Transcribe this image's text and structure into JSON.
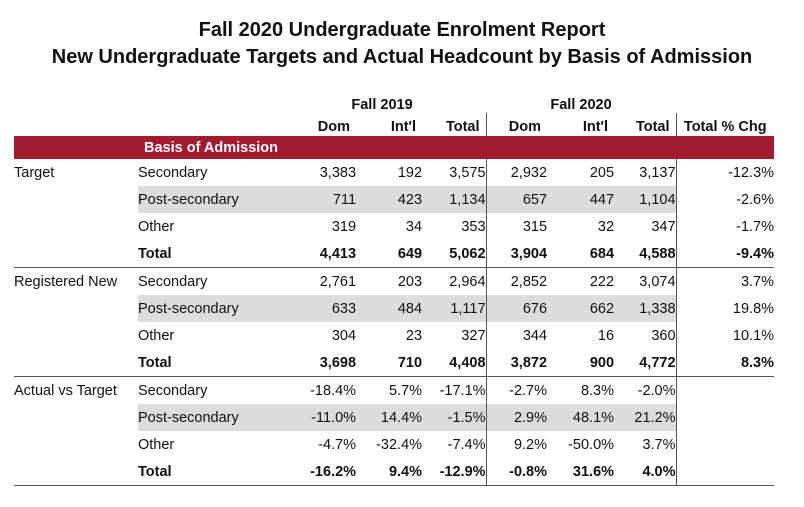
{
  "report": {
    "title": "Fall 2020 Undergraduate Enrolment Report",
    "subtitle": "New Undergraduate Targets and Actual Headcount by Basis of Admission"
  },
  "table": {
    "year_2019": "Fall 2019",
    "year_2020": "Fall 2020",
    "columns": [
      "Dom",
      "Int'l",
      "Total",
      "Dom",
      "Int'l",
      "Total",
      "Total % Chg"
    ],
    "basis_header": "Basis of Admission",
    "sections": [
      {
        "label": "Target",
        "rows": [
          {
            "basis": "Secondary",
            "vals": [
              "3,383",
              "192",
              "3,575",
              "2,932",
              "205",
              "3,137"
            ],
            "pct": "-12.3%"
          },
          {
            "basis": "Post-secondary",
            "vals": [
              "711",
              "423",
              "1,134",
              "657",
              "447",
              "1,104"
            ],
            "pct": "-2.6%"
          },
          {
            "basis": "Other",
            "vals": [
              "319",
              "34",
              "353",
              "315",
              "32",
              "347"
            ],
            "pct": "-1.7%"
          },
          {
            "basis": "Total",
            "vals": [
              "4,413",
              "649",
              "5,062",
              "3,904",
              "684",
              "4,588"
            ],
            "pct": "-9.4%"
          }
        ]
      },
      {
        "label": "Registered New",
        "rows": [
          {
            "basis": "Secondary",
            "vals": [
              "2,761",
              "203",
              "2,964",
              "2,852",
              "222",
              "3,074"
            ],
            "pct": "3.7%"
          },
          {
            "basis": "Post-secondary",
            "vals": [
              "633",
              "484",
              "1,117",
              "676",
              "662",
              "1,338"
            ],
            "pct": "19.8%"
          },
          {
            "basis": "Other",
            "vals": [
              "304",
              "23",
              "327",
              "344",
              "16",
              "360"
            ],
            "pct": "10.1%"
          },
          {
            "basis": "Total",
            "vals": [
              "3,698",
              "710",
              "4,408",
              "3,872",
              "900",
              "4,772"
            ],
            "pct": "8.3%"
          }
        ]
      },
      {
        "label": "Actual vs Target",
        "rows": [
          {
            "basis": "Secondary",
            "vals": [
              "-18.4%",
              "5.7%",
              "-17.1%",
              "-2.7%",
              "8.3%",
              "-2.0%"
            ],
            "pct": ""
          },
          {
            "basis": "Post-secondary",
            "vals": [
              "-11.0%",
              "14.4%",
              "-1.5%",
              "2.9%",
              "48.1%",
              "21.2%"
            ],
            "pct": ""
          },
          {
            "basis": "Other",
            "vals": [
              "-4.7%",
              "-32.4%",
              "-7.4%",
              "9.2%",
              "-50.0%",
              "3.7%"
            ],
            "pct": ""
          },
          {
            "basis": "Total",
            "vals": [
              "-16.2%",
              "9.4%",
              "-12.9%",
              "-0.8%",
              "31.6%",
              "4.0%"
            ],
            "pct": ""
          }
        ]
      }
    ]
  }
}
